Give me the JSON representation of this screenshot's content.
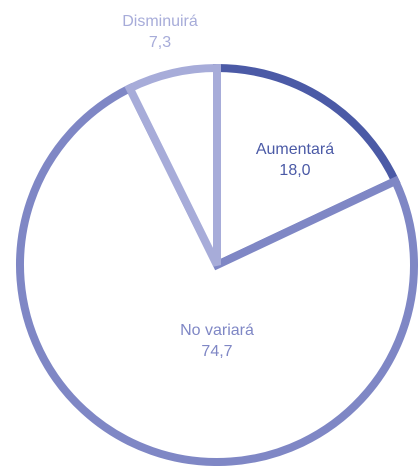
{
  "chart_data": {
    "type": "pie",
    "categories": [
      "Aumentará",
      "No variará",
      "Disminuirá"
    ],
    "values": [
      18.0,
      74.7,
      7.3
    ],
    "value_labels": [
      "18,0",
      "74,7",
      "7,3"
    ],
    "colors": [
      "#4b5aa6",
      "#7f87c5",
      "#a7acd9"
    ]
  }
}
